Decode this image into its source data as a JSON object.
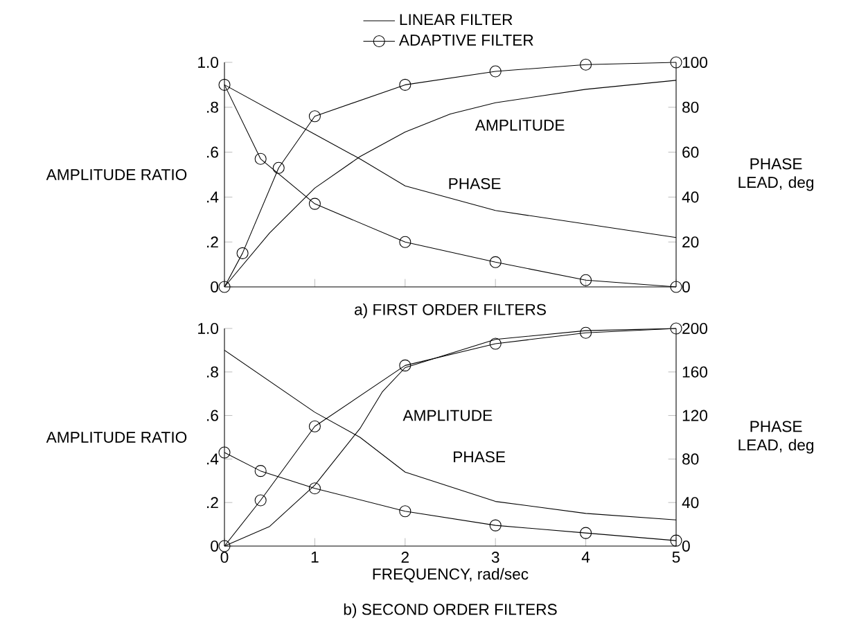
{
  "chart_data": [
    {
      "type": "line",
      "title": "a) FIRST ORDER FILTERS",
      "ylabel": "AMPLITUDE RATIO",
      "y2label": "PHASE LEAD, deg",
      "xlim": [
        0,
        5
      ],
      "xticks": [
        0,
        1,
        2,
        3,
        4,
        5
      ],
      "ylim": [
        0,
        1
      ],
      "yticks": [
        0,
        {
          "value": 0.2,
          "label": ".2"
        },
        {
          "value": 0.4,
          "label": ".4"
        },
        {
          "value": 0.6,
          "label": ".6"
        },
        {
          "value": 0.8,
          "label": ".8"
        },
        {
          "value": 1.0,
          "label": "1.0"
        }
      ],
      "y2lim": [
        0,
        100
      ],
      "y2ticks": [
        0,
        20,
        40,
        60,
        80,
        100
      ],
      "tick_labels": "y",
      "legend": "top",
      "grid": false,
      "series": [
        {
          "name": "LINEAR FILTER",
          "color": "#000000",
          "marker": "none",
          "x": [
            0,
            0.5,
            1,
            1.5,
            2,
            2.5,
            3,
            4,
            5
          ],
          "values": [
            0,
            0.24,
            0.44,
            0.58,
            0.69,
            0.77,
            0.82,
            0.88,
            0.92
          ]
        },
        {
          "name": "ADAPTIVE FILTER",
          "color": "#000000",
          "marker": "circle",
          "x": [
            0,
            0.2,
            0.6,
            1,
            2,
            3,
            4,
            5
          ],
          "values": [
            0,
            0.15,
            0.53,
            0.76,
            0.9,
            0.96,
            0.99,
            1.0
          ]
        },
        {
          "color": "#000000",
          "marker": "none",
          "axis": "y2",
          "x": [
            0,
            1,
            1.5,
            2,
            3,
            4,
            5
          ],
          "values": [
            90,
            68,
            57,
            45,
            34,
            28,
            22
          ]
        },
        {
          "color": "#000000",
          "marker": "circle",
          "axis": "y2",
          "x": [
            0,
            0.4,
            1,
            2,
            3,
            4,
            5
          ],
          "values": [
            90,
            57,
            37,
            20,
            11,
            3,
            0
          ]
        }
      ],
      "annotations": [
        "AMPLITUDE",
        "PHASE"
      ]
    },
    {
      "type": "line",
      "title": "b) SECOND ORDER FILTERS",
      "xlabel": "FREQUENCY, rad/sec",
      "ylabel": "AMPLITUDE RATIO",
      "y2label": "PHASE LEAD, deg",
      "xlim": [
        0,
        5
      ],
      "xticks": [
        0,
        1,
        2,
        3,
        4,
        5
      ],
      "ylim": [
        0,
        1
      ],
      "yticks": [
        0,
        {
          "value": 0.2,
          "label": ".2"
        },
        {
          "value": 0.4,
          "label": ".4"
        },
        {
          "value": 0.6,
          "label": ".6"
        },
        {
          "value": 0.8,
          "label": ".8"
        },
        {
          "value": 1.0,
          "label": "1.0"
        }
      ],
      "y2lim": [
        0,
        200
      ],
      "y2ticks": [
        0,
        40,
        80,
        120,
        160,
        200
      ],
      "grid": false,
      "series": [
        {
          "color": "#000000",
          "marker": "none",
          "x": [
            0,
            0.5,
            1,
            1.5,
            1.75,
            2,
            3,
            4,
            5
          ],
          "values": [
            0,
            0.09,
            0.28,
            0.54,
            0.71,
            0.82,
            0.95,
            0.99,
            1.0
          ]
        },
        {
          "color": "#000000",
          "marker": "circle",
          "x": [
            0,
            0.4,
            1,
            2,
            3,
            4,
            5
          ],
          "values": [
            0,
            0.21,
            0.55,
            0.83,
            0.93,
            0.98,
            1.0
          ]
        },
        {
          "color": "#000000",
          "marker": "none",
          "axis": "y2",
          "x": [
            0,
            1,
            1.5,
            2,
            3,
            4,
            5
          ],
          "values": [
            180,
            123,
            100,
            68,
            41,
            30,
            24
          ]
        },
        {
          "color": "#000000",
          "marker": "circle",
          "axis": "y2",
          "x": [
            0,
            0.4,
            1,
            2,
            3,
            4,
            5
          ],
          "values": [
            86,
            69,
            53,
            32,
            19,
            12,
            5
          ]
        }
      ],
      "annotations": [
        "AMPLITUDE",
        "PHASE"
      ]
    }
  ]
}
